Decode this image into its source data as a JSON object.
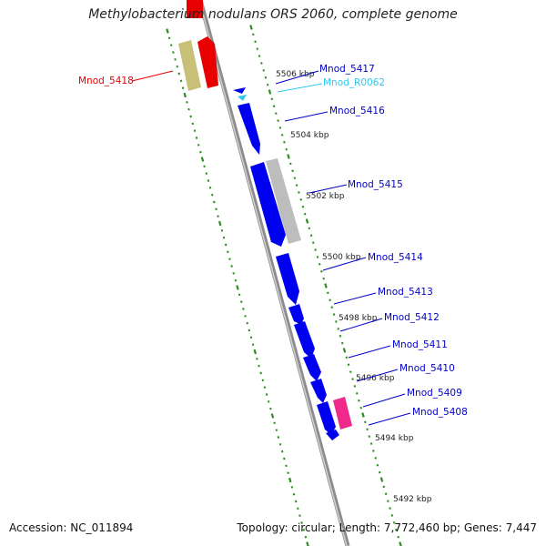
{
  "title": "Methylobacterium nodulans ORS 2060, complete genome",
  "footer": {
    "accession": "Accession: NC_011894",
    "summary": "Topology: circular; Length: 7,772,460 bp; Genes: 7,447"
  },
  "colors": {
    "backbone": "#8c8c8c",
    "tick": "#2e8b22",
    "forward_gene": "#e80000",
    "reverse_gene": "#0000f0",
    "rna_gene": "#30c8f0",
    "other_gene": "#c8bf78",
    "grey_feature": "#bdbdbd",
    "pink_feature": "#f0288a",
    "label_red": "#e80000",
    "label_blue": "#0000c8",
    "label_cyan": "#30c8f0"
  },
  "scale_labels": [
    "5506 kbp",
    "5504 kbp",
    "5502 kbp",
    "5500 kbp",
    "5498 kbp",
    "5496 kbp",
    "5494 kbp",
    "5492 kbp"
  ],
  "genes": [
    {
      "name": "Mnod_5418",
      "color": "label_red"
    },
    {
      "name": "Mnod_5417",
      "color": "label_blue"
    },
    {
      "name": "Mnod_R0062",
      "color": "label_cyan"
    },
    {
      "name": "Mnod_5416",
      "color": "label_blue"
    },
    {
      "name": "Mnod_5415",
      "color": "label_blue"
    },
    {
      "name": "Mnod_5414",
      "color": "label_blue"
    },
    {
      "name": "Mnod_5413",
      "color": "label_blue"
    },
    {
      "name": "Mnod_5412",
      "color": "label_blue"
    },
    {
      "name": "Mnod_5411",
      "color": "label_blue"
    },
    {
      "name": "Mnod_5410",
      "color": "label_blue"
    },
    {
      "name": "Mnod_5409",
      "color": "label_blue"
    },
    {
      "name": "Mnod_5408",
      "color": "label_blue"
    }
  ]
}
